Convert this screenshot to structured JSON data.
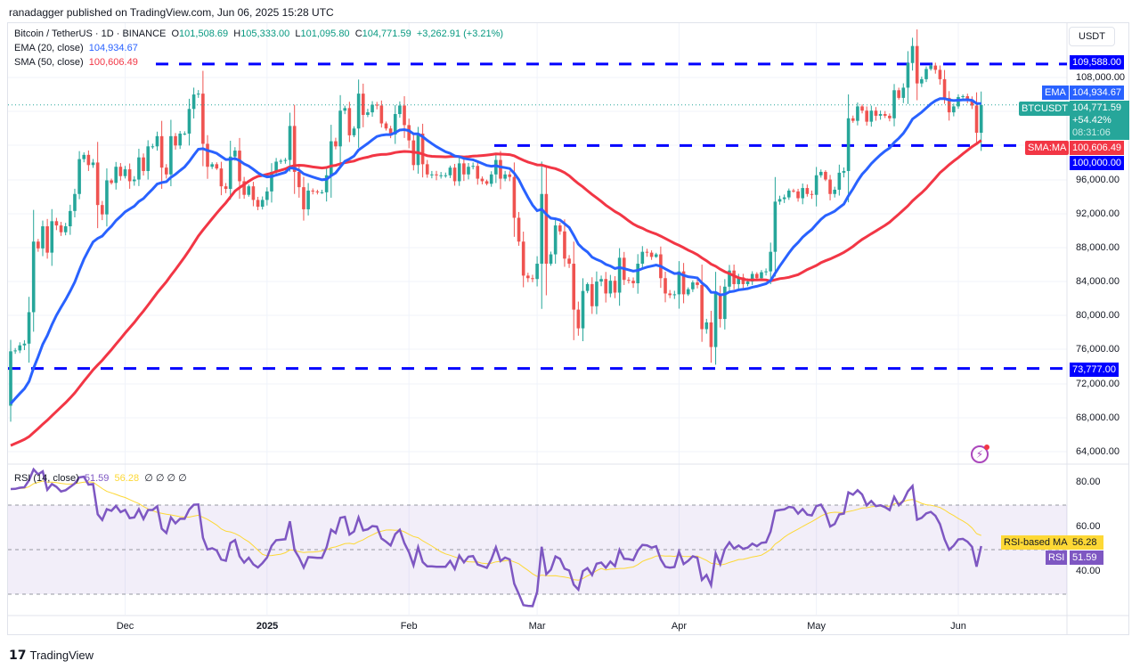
{
  "publish_line": "ranadagger published on TradingView.com, Jun 06, 2025 15:28 UTC",
  "header": {
    "symbol": "Bitcoin / TetherUS · 1D · BINANCE",
    "o_label": "O",
    "o": "101,508.69",
    "h_label": "H",
    "h": "105,333.00",
    "l_label": "L",
    "l": "101,095.80",
    "c_label": "C",
    "c": "104,771.59",
    "change": "+3,262.91 (+3.21%)"
  },
  "indicators": {
    "ema_label": "EMA (20, close)",
    "ema_value": "104,934.67",
    "sma_label": "SMA (50, close)",
    "sma_value": "100,606.49",
    "rsi_label": "RSI (14, close)",
    "rsi_value": "51.59",
    "rsi_ma_value": "56.28",
    "rsi_extra": "∅ ∅ ∅ ∅"
  },
  "currency_button": "USDT",
  "badges": {
    "level_high": "109,588.00",
    "ema_tag": "EMA",
    "ema": "104,934.67",
    "symbol_tag": "BTCUSDT",
    "price": "104,771.59",
    "pct": "+54.42%",
    "countdown": "08:31:06",
    "sma_tag": "SMA:MA",
    "sma": "100,606.49",
    "level_mid": "100,000.00",
    "level_low": "73,777.00",
    "rsi_ma_tag": "RSI-based MA",
    "rsi_ma": "56.28",
    "rsi_tag": "RSI",
    "rsi": "51.59"
  },
  "price_axis": [
    "108,000.00",
    "96,000.00",
    "92,000.00",
    "88,000.00",
    "84,000.00",
    "80,000.00",
    "76,000.00",
    "72,000.00",
    "68,000.00",
    "64,000.00"
  ],
  "rsi_axis": [
    "80.00",
    "60.00",
    "40.00"
  ],
  "time_axis": [
    "Dec",
    "2025",
    "Feb",
    "Mar",
    "Apr",
    "May",
    "Jun"
  ],
  "logo_text": "TradingView",
  "colors": {
    "up": "#26a69a",
    "down": "#ef5350",
    "ema": "#2962ff",
    "sma": "#f23645",
    "levels": "#0000ff",
    "rsi": "#7e57c2",
    "rsi_ma": "#fdd835"
  },
  "chart_data": {
    "type": "candlestick",
    "interval": "1D",
    "ylim": [
      62000,
      113000
    ],
    "levels": [
      109588,
      100000,
      73777
    ],
    "first_open": 69400,
    "close": [
      75800,
      75900,
      76500,
      76700,
      80400,
      88700,
      87900,
      90500,
      87400,
      91100,
      90600,
      89800,
      90500,
      92300,
      94300,
      98400,
      98900,
      97700,
      98000,
      93000,
      91900,
      95900,
      95600,
      97500,
      96400,
      97200,
      95800,
      96000,
      98600,
      97000,
      99900,
      99900,
      101100,
      97400,
      96600,
      101100,
      100000,
      101400,
      101400,
      104300,
      106000,
      106100,
      100200,
      97500,
      97800,
      97300,
      95200,
      94900,
      98700,
      99400,
      95800,
      94200,
      95200,
      93600,
      92800,
      93600,
      94600,
      96900,
      98100,
      98200,
      98300,
      102300,
      96900,
      95100,
      92500,
      94700,
      94600,
      94500,
      94500,
      96500,
      100500,
      99900,
      104100,
      104400,
      101200,
      102000,
      106100,
      103600,
      103900,
      104800,
      104700,
      102600,
      102000,
      101300,
      103700,
      104700,
      102400,
      100600,
      97700,
      101400,
      97800,
      96600,
      96600,
      96500,
      96500,
      96500,
      97400,
      95800,
      97900,
      96600,
      97500,
      97600,
      96100,
      95800,
      95500,
      96600,
      98300,
      96100,
      96600,
      96300,
      91500,
      88700,
      84700,
      84400,
      84300,
      86100,
      94300,
      86100,
      87200,
      90600,
      89900,
      86700,
      86100,
      80700,
      78500,
      82900,
      83700,
      81100,
      84000,
      84300,
      82600,
      84100,
      82700,
      86800,
      84200,
      84100,
      83800,
      86100,
      87500,
      87400,
      86900,
      87200,
      84400,
      82600,
      82400,
      82500,
      85200,
      82500,
      83100,
      83900,
      83600,
      78400,
      79200,
      76300,
      82600,
      79600,
      83400,
      85300,
      83700,
      84500,
      83700,
      84000,
      84900,
      84400,
      85100,
      85200,
      87500,
      93400,
      93700,
      93900,
      94700,
      94600,
      93800,
      95000,
      94300,
      94200,
      96500,
      96900,
      96000,
      94300,
      94800,
      96800,
      97000,
      103200,
      102900,
      104600,
      104100,
      102800,
      104100,
      103500,
      103700,
      103500,
      103200,
      106500,
      105600,
      106800,
      109700,
      111700,
      107300,
      107800,
      109000,
      109400,
      108900,
      107800,
      105600,
      103900,
      104600,
      105700,
      105800,
      105400,
      104700,
      101500,
      104771.59
    ],
    "ema_period": 20,
    "sma_period": 50,
    "rsi_period": 14,
    "rsi_ma_period": 14,
    "rsi_ylim": [
      20,
      88
    ],
    "rsi_band": [
      30,
      70
    ],
    "rsi_mid": 50
  }
}
